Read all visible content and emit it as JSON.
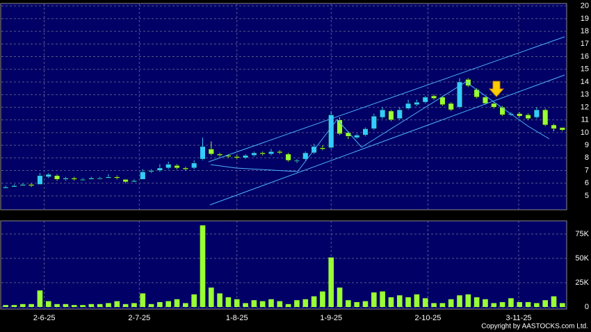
{
  "chart_data": {
    "type": "candlestick",
    "up_color": "#33ccff",
    "down_color": "#99ff33",
    "volume_color": "#99ff33",
    "grid": true,
    "open": [
      5.6,
      5.7,
      5.8,
      5.9,
      5.9,
      6.5,
      6.6,
      6.3,
      6.4,
      6.3,
      6.3,
      6.4,
      6.4,
      6.5,
      6.3,
      6.1,
      6.3,
      6.9,
      7.0,
      7.2,
      7.4,
      7.2,
      7.2,
      7.9,
      8.7,
      8.3,
      8.2,
      8.1,
      8.0,
      8.2,
      8.4,
      8.3,
      8.5,
      8.3,
      7.8,
      7.9,
      8.4,
      8.8,
      8.8,
      11.0,
      10.0,
      9.6,
      9.8,
      10.3,
      11.2,
      11.7,
      11.1,
      11.9,
      12.2,
      12.4,
      12.9,
      12.8,
      12.3,
      12.0,
      14.2,
      13.4,
      12.8,
      12.3,
      12.0,
      11.4,
      11.5,
      11.4,
      11.2,
      11.8,
      10.6,
      10.4
    ],
    "high": [
      5.8,
      5.9,
      6.0,
      6.0,
      6.8,
      6.8,
      6.7,
      6.5,
      6.5,
      6.4,
      6.5,
      6.5,
      6.7,
      6.6,
      6.3,
      6.3,
      7.1,
      7.1,
      7.5,
      7.7,
      7.5,
      7.3,
      7.8,
      9.6,
      9.3,
      8.4,
      8.3,
      8.2,
      8.3,
      8.5,
      8.5,
      8.7,
      8.6,
      8.4,
      7.9,
      8.5,
      9.1,
      9.0,
      11.7,
      11.2,
      10.1,
      9.9,
      10.4,
      11.5,
      12.0,
      11.8,
      12.0,
      12.6,
      12.6,
      12.9,
      13.0,
      12.9,
      12.4,
      14.3,
      14.3,
      13.5,
      12.9,
      12.4,
      12.1,
      11.6,
      11.6,
      11.5,
      12.0,
      11.9,
      10.7,
      10.4
    ],
    "low": [
      5.6,
      5.7,
      5.8,
      5.7,
      5.9,
      6.4,
      6.2,
      6.2,
      6.2,
      6.2,
      6.3,
      6.3,
      6.4,
      6.3,
      6.0,
      6.1,
      6.3,
      6.8,
      6.9,
      7.1,
      7.1,
      7.0,
      7.1,
      7.8,
      8.2,
      8.1,
      8.0,
      7.9,
      7.9,
      8.1,
      8.2,
      8.2,
      8.3,
      7.7,
      7.6,
      7.8,
      8.3,
      8.6,
      8.7,
      9.8,
      9.5,
      9.5,
      9.7,
      10.2,
      11.1,
      10.9,
      11.0,
      11.8,
      12.1,
      12.3,
      12.6,
      12.1,
      11.7,
      11.9,
      13.6,
      12.7,
      12.2,
      11.9,
      11.3,
      11.3,
      11.2,
      11.0,
      11.1,
      10.5,
      10.1,
      10.1
    ],
    "close": [
      5.7,
      5.8,
      5.9,
      5.8,
      6.6,
      6.7,
      6.3,
      6.4,
      6.3,
      6.3,
      6.4,
      6.4,
      6.5,
      6.4,
      6.1,
      6.2,
      6.9,
      7.0,
      7.2,
      7.5,
      7.2,
      7.1,
      7.6,
      8.9,
      8.3,
      8.2,
      8.1,
      8.0,
      8.2,
      8.4,
      8.3,
      8.5,
      8.4,
      7.8,
      7.8,
      8.4,
      8.9,
      8.7,
      11.4,
      9.9,
      9.7,
      9.8,
      10.3,
      11.3,
      11.8,
      11.0,
      11.8,
      12.3,
      12.4,
      12.8,
      12.7,
      12.2,
      11.8,
      14.0,
      13.7,
      12.8,
      12.3,
      12.0,
      11.4,
      11.5,
      11.3,
      11.1,
      11.8,
      10.6,
      10.3,
      10.2
    ],
    "volume": [
      2000,
      2000,
      3000,
      3000,
      17000,
      6000,
      3000,
      3000,
      2000,
      2000,
      3000,
      3000,
      4000,
      6000,
      3000,
      4000,
      14000,
      3000,
      5000,
      6000,
      8000,
      4000,
      13000,
      84000,
      20000,
      14000,
      10000,
      8000,
      4000,
      7000,
      6000,
      8000,
      6000,
      3000,
      7000,
      8000,
      11000,
      16000,
      51000,
      20000,
      7000,
      5000,
      6000,
      15000,
      16000,
      10000,
      12000,
      10000,
      13000,
      9000,
      4000,
      4000,
      8000,
      12000,
      13000,
      10000,
      8000,
      4000,
      5000,
      9000,
      5000,
      5000,
      4000,
      7000,
      11000,
      4000
    ],
    "xlim": [
      -0.5,
      65.5
    ],
    "xticks": [
      {
        "value": 4.5,
        "label": "2-6-25"
      },
      {
        "value": 15.6,
        "label": "2-7-25"
      },
      {
        "value": 27,
        "label": "1-8-25"
      },
      {
        "value": 38,
        "label": "1-9-25"
      },
      {
        "value": 49.3,
        "label": "2-10-25"
      },
      {
        "value": 59.9,
        "label": "3-11-25"
      }
    ],
    "ylim": [
      3.9,
      20.2
    ],
    "yticks": [
      5,
      6,
      7,
      8,
      9,
      10,
      11,
      12,
      13,
      14,
      15,
      16,
      17,
      18,
      19,
      20
    ],
    "y2lim": [
      0,
      88600
    ],
    "y2ticks": [
      0,
      {
        "value": 25000,
        "label": "25K"
      },
      {
        "value": 50000,
        "label": "50K"
      },
      {
        "value": 75000,
        "label": "75K"
      }
    ],
    "copyright": "Copyright by AASTOCKS.com Ltd."
  }
}
